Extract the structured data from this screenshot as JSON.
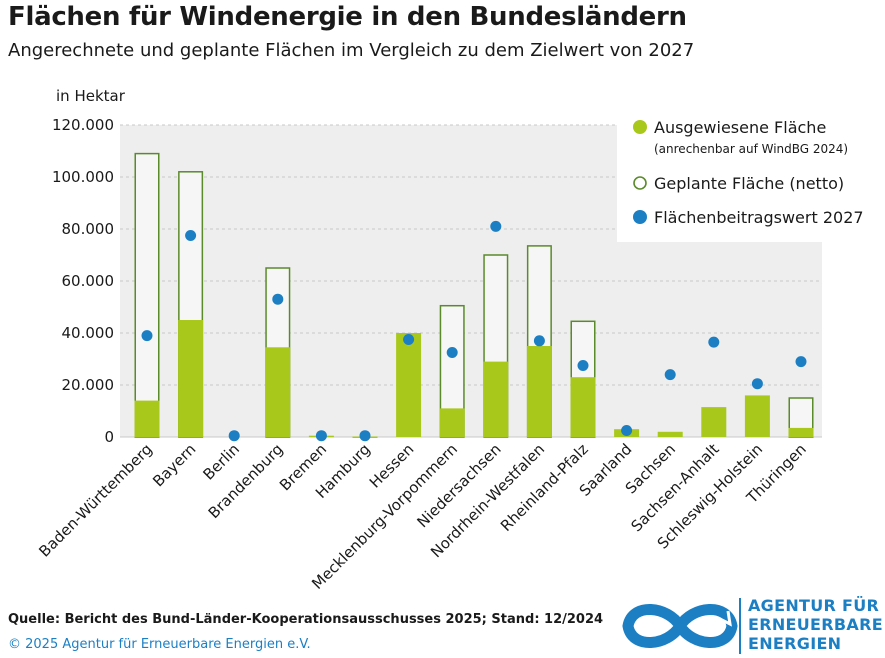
{
  "title": "Flächen für Windenergie in den Bundesländern",
  "subtitle": "Angerechnete und geplante Flächen im Vergleich zu dem Zielwert von 2027",
  "colors": {
    "ausgewiesen": "#a8c81c",
    "geplant_stroke": "#5b8a2a",
    "beitrag": "#1c7fc4",
    "plot_bg": "#eeeeee",
    "grid": "#c8c8c8"
  },
  "chart_data": {
    "type": "bar",
    "unit_label": "in Hektar",
    "ylim": [
      0,
      120000
    ],
    "yticks": [
      0,
      20000,
      40000,
      60000,
      80000,
      100000,
      120000
    ],
    "ytick_labels": [
      "0",
      "20.000",
      "40.000",
      "60.000",
      "80.000",
      "100.000",
      "120.000"
    ],
    "grid": true,
    "legend_position": "top-right",
    "categories": [
      "Baden-Württemberg",
      "Bayern",
      "Berlin",
      "Brandenburg",
      "Bremen",
      "Hamburg",
      "Hessen",
      "Mecklenburg-Vorpommern",
      "Niedersachsen",
      "Nordrhein-Westfalen",
      "Rheinland-Pfalz",
      "Saarland",
      "Sachsen",
      "Sachsen-Anhalt",
      "Schleswig-Holstein",
      "Thüringen"
    ],
    "series": [
      {
        "name": "Ausgewiesene Fläche",
        "note": "(anrechenbar auf WindBG 2024)",
        "kind": "bar",
        "values": [
          14000,
          45000,
          0,
          34500,
          500,
          200,
          40000,
          11000,
          29000,
          35000,
          23000,
          3000,
          2000,
          11500,
          16000,
          3500
        ]
      },
      {
        "name": "Geplante Fläche (netto)",
        "kind": "outline",
        "values": [
          109000,
          102000,
          0,
          65000,
          500,
          200,
          40000,
          50500,
          70000,
          73500,
          44500,
          3000,
          2000,
          11500,
          16000,
          15000
        ]
      },
      {
        "name": "Flächenbeitragswert 2027",
        "kind": "dot",
        "values": [
          39000,
          77500,
          500,
          53000,
          500,
          500,
          37500,
          32500,
          81000,
          37000,
          27500,
          2500,
          24000,
          36500,
          20500,
          29000
        ]
      }
    ]
  },
  "footer": {
    "source": "Quelle: Bericht des Bund-Länder-Kooperationsausschusses 2025; Stand: 12/2024",
    "copyright": "© 2025 Agentur für Erneuerbare Energien e.V.",
    "logo_lines": [
      "AGENTUR FÜR",
      "ERNEUERBARE",
      "ENERGIEN"
    ]
  }
}
